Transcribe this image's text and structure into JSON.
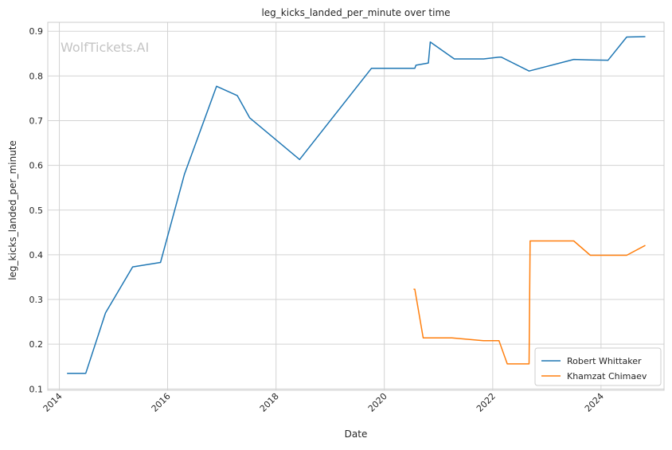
{
  "chart_data": {
    "type": "line",
    "title": "leg_kicks_landed_per_minute over time",
    "xlabel": "Date",
    "ylabel": "leg_kicks_landed_per_minute",
    "watermark": "WolfTickets.AI",
    "x_ticks": [
      "2014",
      "2016",
      "2018",
      "2020",
      "2022",
      "2024"
    ],
    "y_ticks": [
      "0.1",
      "0.2",
      "0.3",
      "0.4",
      "0.5",
      "0.6",
      "0.7",
      "0.8",
      "0.9"
    ],
    "xlim": [
      "2013-10-15",
      "2025-03-01"
    ],
    "ylim": [
      0.097,
      0.92
    ],
    "grid": true,
    "legend_position": "lower-right",
    "series": [
      {
        "name": "Robert Whittaker",
        "color": "#1f77b4",
        "points": [
          {
            "x": "2014-02-22",
            "y": 0.135
          },
          {
            "x": "2014-06-28",
            "y": 0.135
          },
          {
            "x": "2014-11-08",
            "y": 0.27
          },
          {
            "x": "2015-05-10",
            "y": 0.373
          },
          {
            "x": "2015-11-14",
            "y": 0.383
          },
          {
            "x": "2016-04-23",
            "y": 0.58
          },
          {
            "x": "2016-11-26",
            "y": 0.777
          },
          {
            "x": "2017-04-15",
            "y": 0.756
          },
          {
            "x": "2017-07-08",
            "y": 0.706
          },
          {
            "x": "2018-06-09",
            "y": 0.613
          },
          {
            "x": "2019-10-06",
            "y": 0.817
          },
          {
            "x": "2020-07-25",
            "y": 0.817
          },
          {
            "x": "2020-08-01",
            "y": 0.824
          },
          {
            "x": "2020-10-24",
            "y": 0.829
          },
          {
            "x": "2020-11-06",
            "y": 0.876
          },
          {
            "x": "2021-04-17",
            "y": 0.838
          },
          {
            "x": "2021-11-01",
            "y": 0.838
          },
          {
            "x": "2022-02-12",
            "y": 0.842
          },
          {
            "x": "2022-03-01",
            "y": 0.842
          },
          {
            "x": "2022-09-03",
            "y": 0.811
          },
          {
            "x": "2023-07-01",
            "y": 0.837
          },
          {
            "x": "2023-10-21",
            "y": 0.836
          },
          {
            "x": "2024-02-17",
            "y": 0.835
          },
          {
            "x": "2024-06-22",
            "y": 0.887
          },
          {
            "x": "2024-10-26",
            "y": 0.888
          }
        ]
      },
      {
        "name": "Khamzat Chimaev",
        "color": "#ff7f0e",
        "points": [
          {
            "x": "2020-07-16",
            "y": 0.323
          },
          {
            "x": "2020-07-25",
            "y": 0.323
          },
          {
            "x": "2020-09-19",
            "y": 0.214
          },
          {
            "x": "2021-04-01",
            "y": 0.214
          },
          {
            "x": "2021-10-30",
            "y": 0.208
          },
          {
            "x": "2022-02-12",
            "y": 0.208
          },
          {
            "x": "2022-04-09",
            "y": 0.156
          },
          {
            "x": "2022-09-03",
            "y": 0.156
          },
          {
            "x": "2022-09-10",
            "y": 0.431
          },
          {
            "x": "2023-07-01",
            "y": 0.431
          },
          {
            "x": "2023-10-21",
            "y": 0.399
          },
          {
            "x": "2024-06-22",
            "y": 0.399
          },
          {
            "x": "2024-10-26",
            "y": 0.421
          }
        ]
      }
    ]
  }
}
